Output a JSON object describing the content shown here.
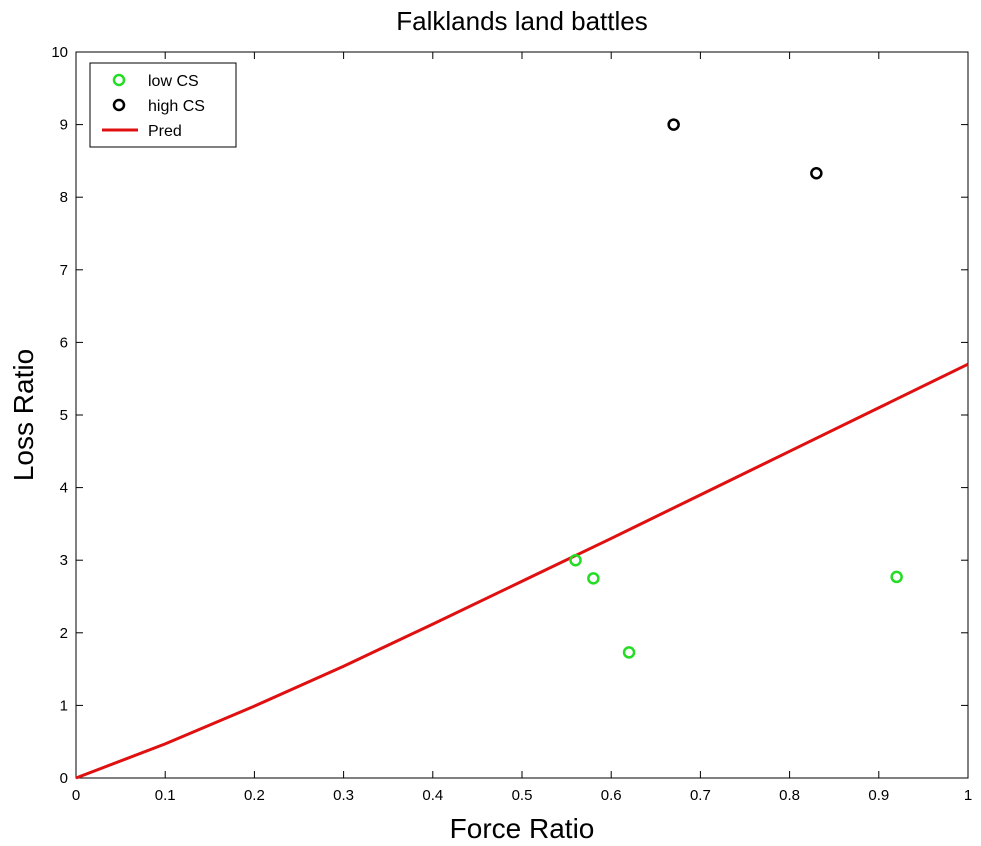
{
  "chart_data": {
    "type": "scatter",
    "title": "Falklands land battles",
    "xlabel": "Force Ratio",
    "ylabel": "Loss Ratio",
    "xlim": [
      0,
      1
    ],
    "ylim": [
      0,
      10
    ],
    "xticks": [
      0,
      0.1,
      0.2,
      0.3,
      0.4,
      0.5,
      0.6,
      0.7,
      0.8,
      0.9,
      1
    ],
    "xtick_labels": [
      "0",
      "0.1",
      "0.2",
      "0.3",
      "0.4",
      "0.5",
      "0.6",
      "0.7",
      "0.8",
      "0.9",
      "1"
    ],
    "yticks": [
      0,
      1,
      2,
      3,
      4,
      5,
      6,
      7,
      8,
      9,
      10
    ],
    "ytick_labels": [
      "0",
      "1",
      "2",
      "3",
      "4",
      "5",
      "6",
      "7",
      "8",
      "9",
      "10"
    ],
    "grid": false,
    "legend_position": "top-left",
    "series": [
      {
        "name": "low CS",
        "kind": "scatter",
        "color": "#22dd22",
        "marker": "circle-open",
        "points": [
          [
            0.56,
            3.0
          ],
          [
            0.58,
            2.75
          ],
          [
            0.62,
            1.73
          ],
          [
            0.92,
            2.77
          ]
        ]
      },
      {
        "name": "high CS",
        "kind": "scatter",
        "color": "#000000",
        "marker": "circle-open",
        "points": [
          [
            0.67,
            9.0
          ],
          [
            0.83,
            8.33
          ]
        ]
      },
      {
        "name": "Pred",
        "kind": "line",
        "color": "#e01010",
        "points": [
          [
            0,
            0
          ],
          [
            0.1,
            0.47
          ],
          [
            0.2,
            0.99
          ],
          [
            0.3,
            1.54
          ],
          [
            0.4,
            2.12
          ],
          [
            0.5,
            2.71
          ],
          [
            0.6,
            3.3
          ],
          [
            0.7,
            3.9
          ],
          [
            0.8,
            4.5
          ],
          [
            0.9,
            5.1
          ],
          [
            1.0,
            5.7
          ]
        ]
      }
    ]
  }
}
